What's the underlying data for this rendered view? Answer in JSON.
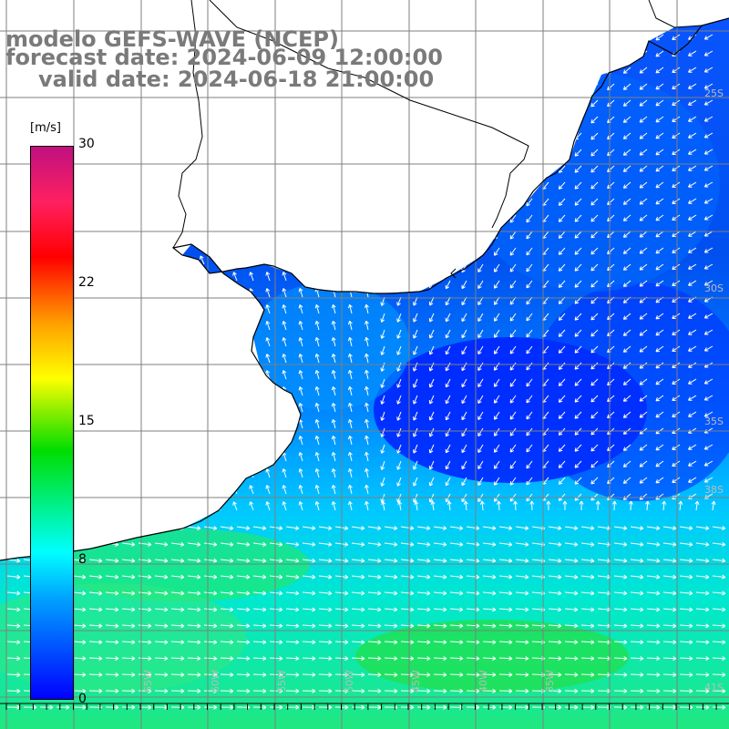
{
  "title": {
    "line1": "modelo GEFS-WAVE (NCEP)",
    "line2": "forecast date: 2024-06-09 12:00:00",
    "line3": "valid date: 2024-06-18 21:00:00"
  },
  "colorbar": {
    "unit": "[m/s]",
    "ticks": [
      "30",
      "22",
      "15",
      "8",
      "0"
    ],
    "tick_values": [
      30,
      22,
      15,
      8,
      0
    ],
    "range": [
      0,
      30
    ]
  },
  "axis_labels": {
    "latitude": [
      "25S",
      "30S",
      "35S",
      "38S",
      "41S"
    ],
    "longitude": [
      "65W",
      "60W",
      "55W",
      "50W",
      "45W",
      "40W",
      "35W"
    ]
  },
  "colors": {
    "title": "#7a7a7a",
    "coastline": "#000000",
    "grid": "#7f7f7f",
    "arrows": "#ffffff"
  }
}
